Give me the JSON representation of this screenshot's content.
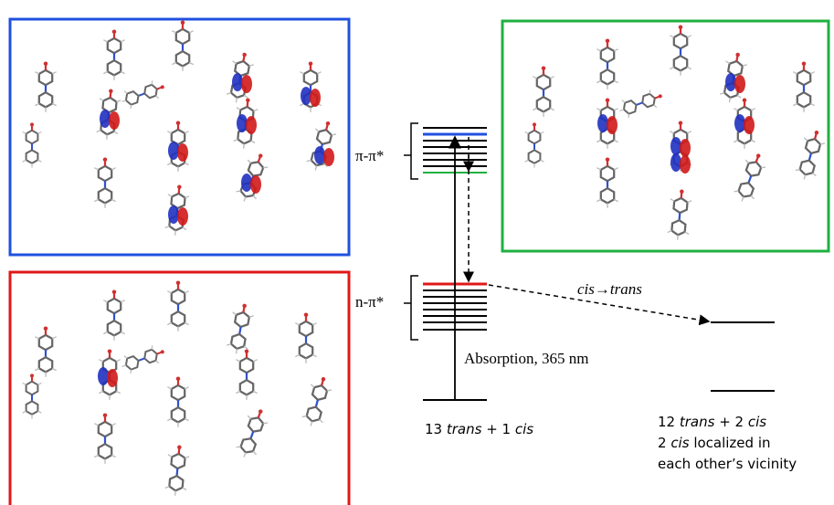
{
  "levels": {
    "pi_pi_star": "π-π*",
    "n_pi_star": "n-π*"
  },
  "arrows": {
    "isomerization": "cis→trans",
    "absorption": "Absorption, 365 nm"
  },
  "initial_state": {
    "parts": [
      "13 ",
      "trans",
      " + 1 ",
      "cis"
    ]
  },
  "final_state": {
    "line1": [
      "12 ",
      "trans",
      " + 2 ",
      "cis"
    ],
    "line2": [
      "2 ",
      "cis",
      " localized in"
    ],
    "line3": "each other’s vicinity"
  }
}
